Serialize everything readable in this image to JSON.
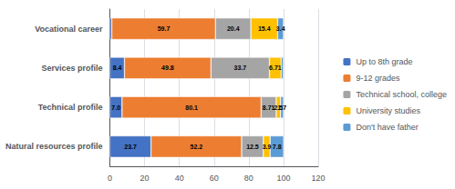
{
  "chart_data": {
    "type": "bar",
    "orientation": "horizontal",
    "stacked": true,
    "categories": [
      "Natural resources profile",
      "Technical profile",
      "Services profile",
      "Vocational career"
    ],
    "series": [
      {
        "name": "Up to 8th grade",
        "color": "#4472C4",
        "values": [
          23.7,
          7.0,
          8.4,
          1.1
        ],
        "value_labels": [
          "23.7",
          "7.0",
          "8.4",
          null
        ]
      },
      {
        "name": "9-12 grades",
        "color": "#ED7D31",
        "values": [
          52.2,
          80.1,
          49.8,
          59.7
        ],
        "value_labels": [
          "52.2",
          "80.1",
          "49.8",
          "59.7"
        ]
      },
      {
        "name": "Technical school, college",
        "color": "#A5A5A5",
        "values": [
          12.5,
          8.71,
          33.7,
          20.4
        ],
        "value_labels": [
          "12.5",
          "8.71",
          "33.7",
          "20.4"
        ]
      },
      {
        "name": "University studies",
        "color": "#FFC000",
        "values": [
          3.9,
          2.5,
          6.71,
          15.4
        ],
        "value_labels": [
          "3.9",
          "2.5",
          "6.71",
          "15.4"
        ]
      },
      {
        "name": "Don't have father",
        "color": "#5B9BD5",
        "values": [
          7.8,
          1.7,
          1.3,
          3.4
        ],
        "value_labels": [
          "7.8",
          "1.7",
          null,
          "3.4"
        ]
      }
    ],
    "xlim": [
      0,
      120
    ],
    "xticks": [
      0,
      20,
      40,
      60,
      80,
      100,
      120
    ],
    "data_labels": true,
    "grid": true,
    "legend": "right"
  }
}
